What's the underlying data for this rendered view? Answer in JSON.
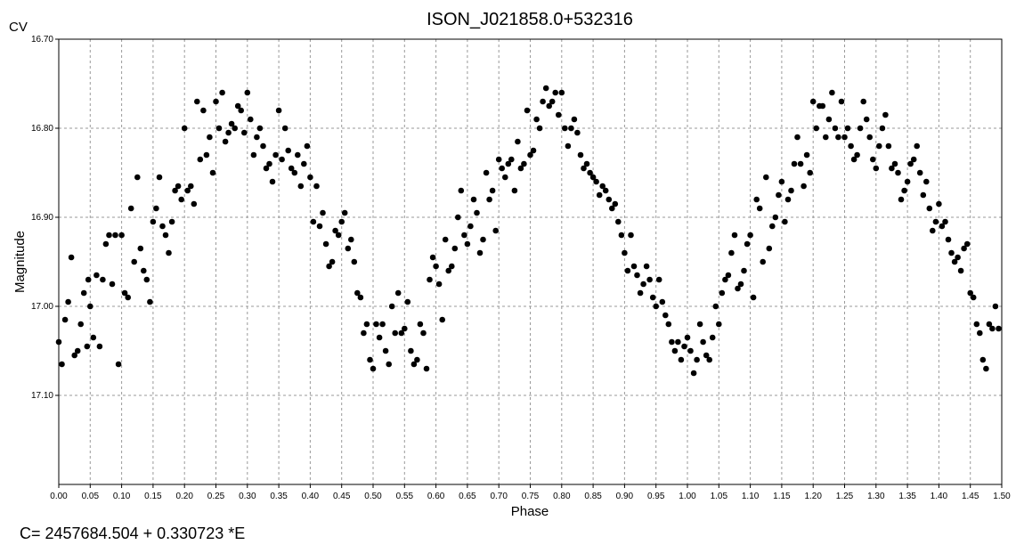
{
  "chart_data": {
    "type": "scatter",
    "title": "ISON_J021858.0+532316",
    "corner_label": "CV",
    "xlabel": "Phase",
    "ylabel": "Magnitude",
    "xlim": [
      0.0,
      1.5
    ],
    "ylim": [
      16.7,
      17.2
    ],
    "y_inverted": true,
    "grid": true,
    "x_ticks": [
      "0.00",
      "0.05",
      "0.10",
      "0.15",
      "0.20",
      "0.25",
      "0.30",
      "0.35",
      "0.40",
      "0.45",
      "0.50",
      "0.55",
      "0.60",
      "0.65",
      "0.70",
      "0.75",
      "0.80",
      "0.85",
      "0.90",
      "0.95",
      "1.00",
      "1.05",
      "1.10",
      "1.15",
      "1.20",
      "1.25",
      "1.30",
      "1.35",
      "1.40",
      "1.45",
      "1.50"
    ],
    "y_ticks": [
      "16.70",
      "16.80",
      "16.90",
      "17.00",
      "17.10"
    ],
    "marker_color": "#000000",
    "points": [
      [
        0.0,
        17.04
      ],
      [
        0.005,
        17.065
      ],
      [
        0.01,
        17.015
      ],
      [
        0.015,
        16.995
      ],
      [
        0.02,
        16.945
      ],
      [
        0.025,
        17.055
      ],
      [
        0.03,
        17.05
      ],
      [
        0.035,
        17.02
      ],
      [
        0.04,
        16.985
      ],
      [
        0.045,
        17.045
      ],
      [
        0.047,
        16.97
      ],
      [
        0.05,
        17.0
      ],
      [
        0.055,
        17.035
      ],
      [
        0.06,
        16.965
      ],
      [
        0.065,
        17.045
      ],
      [
        0.07,
        16.97
      ],
      [
        0.075,
        16.93
      ],
      [
        0.08,
        16.92
      ],
      [
        0.085,
        16.975
      ],
      [
        0.09,
        16.92
      ],
      [
        0.095,
        17.065
      ],
      [
        0.1,
        16.92
      ],
      [
        0.105,
        16.985
      ],
      [
        0.11,
        16.99
      ],
      [
        0.115,
        16.89
      ],
      [
        0.12,
        16.95
      ],
      [
        0.125,
        16.855
      ],
      [
        0.13,
        16.935
      ],
      [
        0.135,
        16.96
      ],
      [
        0.14,
        16.97
      ],
      [
        0.145,
        16.995
      ],
      [
        0.15,
        16.905
      ],
      [
        0.155,
        16.89
      ],
      [
        0.16,
        16.855
      ],
      [
        0.165,
        16.91
      ],
      [
        0.17,
        16.92
      ],
      [
        0.175,
        16.94
      ],
      [
        0.18,
        16.905
      ],
      [
        0.185,
        16.87
      ],
      [
        0.19,
        16.865
      ],
      [
        0.195,
        16.88
      ],
      [
        0.2,
        16.8
      ],
      [
        0.205,
        16.87
      ],
      [
        0.21,
        16.865
      ],
      [
        0.215,
        16.885
      ],
      [
        0.22,
        16.77
      ],
      [
        0.225,
        16.835
      ],
      [
        0.23,
        16.78
      ],
      [
        0.235,
        16.83
      ],
      [
        0.24,
        16.81
      ],
      [
        0.245,
        16.85
      ],
      [
        0.25,
        16.77
      ],
      [
        0.255,
        16.8
      ],
      [
        0.26,
        16.76
      ],
      [
        0.265,
        16.815
      ],
      [
        0.27,
        16.805
      ],
      [
        0.275,
        16.795
      ],
      [
        0.28,
        16.8
      ],
      [
        0.285,
        16.775
      ],
      [
        0.29,
        16.78
      ],
      [
        0.295,
        16.805
      ],
      [
        0.3,
        16.76
      ],
      [
        0.305,
        16.79
      ],
      [
        0.31,
        16.83
      ],
      [
        0.315,
        16.81
      ],
      [
        0.32,
        16.8
      ],
      [
        0.325,
        16.82
      ],
      [
        0.33,
        16.845
      ],
      [
        0.335,
        16.84
      ],
      [
        0.34,
        16.86
      ],
      [
        0.345,
        16.83
      ],
      [
        0.35,
        16.78
      ],
      [
        0.355,
        16.835
      ],
      [
        0.36,
        16.8
      ],
      [
        0.365,
        16.825
      ],
      [
        0.37,
        16.845
      ],
      [
        0.375,
        16.85
      ],
      [
        0.38,
        16.83
      ],
      [
        0.385,
        16.865
      ],
      [
        0.39,
        16.84
      ],
      [
        0.395,
        16.82
      ],
      [
        0.4,
        16.855
      ],
      [
        0.405,
        16.905
      ],
      [
        0.41,
        16.865
      ],
      [
        0.415,
        16.91
      ],
      [
        0.42,
        16.895
      ],
      [
        0.425,
        16.93
      ],
      [
        0.43,
        16.955
      ],
      [
        0.435,
        16.95
      ],
      [
        0.44,
        16.915
      ],
      [
        0.445,
        16.92
      ],
      [
        0.45,
        16.905
      ],
      [
        0.455,
        16.895
      ],
      [
        0.46,
        16.935
      ],
      [
        0.465,
        16.925
      ],
      [
        0.47,
        16.95
      ],
      [
        0.475,
        16.985
      ],
      [
        0.48,
        16.99
      ],
      [
        0.485,
        17.03
      ],
      [
        0.49,
        17.02
      ],
      [
        0.495,
        17.06
      ],
      [
        0.5,
        17.07
      ],
      [
        0.505,
        17.02
      ],
      [
        0.51,
        17.035
      ],
      [
        0.515,
        17.02
      ],
      [
        0.52,
        17.05
      ],
      [
        0.525,
        17.065
      ],
      [
        0.53,
        17.0
      ],
      [
        0.535,
        17.03
      ],
      [
        0.54,
        16.985
      ],
      [
        0.545,
        17.03
      ],
      [
        0.55,
        17.025
      ],
      [
        0.555,
        16.995
      ],
      [
        0.56,
        17.05
      ],
      [
        0.565,
        17.065
      ],
      [
        0.57,
        17.06
      ],
      [
        0.575,
        17.02
      ],
      [
        0.58,
        17.03
      ],
      [
        0.585,
        17.07
      ],
      [
        0.59,
        16.97
      ],
      [
        0.595,
        16.945
      ],
      [
        0.6,
        16.955
      ],
      [
        0.605,
        16.975
      ],
      [
        0.61,
        17.015
      ],
      [
        0.615,
        16.925
      ],
      [
        0.62,
        16.96
      ],
      [
        0.625,
        16.955
      ],
      [
        0.63,
        16.935
      ],
      [
        0.635,
        16.9
      ],
      [
        0.64,
        16.87
      ],
      [
        0.645,
        16.92
      ],
      [
        0.65,
        16.93
      ],
      [
        0.655,
        16.91
      ],
      [
        0.66,
        16.88
      ],
      [
        0.665,
        16.895
      ],
      [
        0.67,
        16.94
      ],
      [
        0.675,
        16.925
      ],
      [
        0.68,
        16.85
      ],
      [
        0.685,
        16.88
      ],
      [
        0.69,
        16.87
      ],
      [
        0.695,
        16.915
      ],
      [
        0.7,
        16.835
      ],
      [
        0.705,
        16.845
      ],
      [
        0.71,
        16.855
      ],
      [
        0.715,
        16.84
      ],
      [
        0.72,
        16.835
      ],
      [
        0.725,
        16.87
      ],
      [
        0.73,
        16.815
      ],
      [
        0.735,
        16.845
      ],
      [
        0.74,
        16.84
      ],
      [
        0.745,
        16.78
      ],
      [
        0.75,
        16.83
      ],
      [
        0.755,
        16.825
      ],
      [
        0.76,
        16.79
      ],
      [
        0.765,
        16.8
      ],
      [
        0.77,
        16.77
      ],
      [
        0.775,
        16.755
      ],
      [
        0.78,
        16.775
      ],
      [
        0.785,
        16.77
      ],
      [
        0.79,
        16.76
      ],
      [
        0.795,
        16.785
      ],
      [
        0.8,
        16.76
      ],
      [
        0.805,
        16.8
      ],
      [
        0.81,
        16.82
      ],
      [
        0.815,
        16.8
      ],
      [
        0.82,
        16.79
      ],
      [
        0.825,
        16.805
      ],
      [
        0.83,
        16.83
      ],
      [
        0.835,
        16.845
      ],
      [
        0.84,
        16.84
      ],
      [
        0.845,
        16.85
      ],
      [
        0.85,
        16.855
      ],
      [
        0.855,
        16.86
      ],
      [
        0.86,
        16.875
      ],
      [
        0.865,
        16.865
      ],
      [
        0.87,
        16.87
      ],
      [
        0.875,
        16.88
      ],
      [
        0.88,
        16.89
      ],
      [
        0.885,
        16.885
      ],
      [
        0.89,
        16.905
      ],
      [
        0.895,
        16.92
      ],
      [
        0.9,
        16.94
      ],
      [
        0.905,
        16.96
      ],
      [
        0.91,
        16.92
      ],
      [
        0.915,
        16.955
      ],
      [
        0.92,
        16.965
      ],
      [
        0.925,
        16.985
      ],
      [
        0.93,
        16.975
      ],
      [
        0.935,
        16.955
      ],
      [
        0.94,
        16.97
      ],
      [
        0.945,
        16.99
      ],
      [
        0.95,
        17.0
      ],
      [
        0.955,
        16.97
      ],
      [
        0.96,
        16.995
      ],
      [
        0.965,
        17.01
      ],
      [
        0.97,
        17.02
      ],
      [
        0.975,
        17.04
      ],
      [
        0.98,
        17.05
      ],
      [
        0.985,
        17.04
      ],
      [
        0.99,
        17.06
      ],
      [
        0.995,
        17.045
      ],
      [
        1.0,
        17.035
      ],
      [
        1.005,
        17.05
      ],
      [
        1.01,
        17.075
      ],
      [
        1.015,
        17.06
      ],
      [
        1.02,
        17.02
      ],
      [
        1.025,
        17.04
      ],
      [
        1.03,
        17.055
      ],
      [
        1.035,
        17.06
      ],
      [
        1.04,
        17.035
      ],
      [
        1.045,
        17.0
      ],
      [
        1.05,
        17.02
      ],
      [
        1.055,
        16.985
      ],
      [
        1.06,
        16.97
      ],
      [
        1.065,
        16.965
      ],
      [
        1.07,
        16.94
      ],
      [
        1.075,
        16.92
      ],
      [
        1.08,
        16.98
      ],
      [
        1.085,
        16.975
      ],
      [
        1.09,
        16.96
      ],
      [
        1.095,
        16.93
      ],
      [
        1.1,
        16.92
      ],
      [
        1.105,
        16.99
      ],
      [
        1.11,
        16.88
      ],
      [
        1.115,
        16.89
      ],
      [
        1.12,
        16.95
      ],
      [
        1.125,
        16.855
      ],
      [
        1.13,
        16.935
      ],
      [
        1.135,
        16.91
      ],
      [
        1.14,
        16.9
      ],
      [
        1.145,
        16.875
      ],
      [
        1.15,
        16.86
      ],
      [
        1.155,
        16.905
      ],
      [
        1.16,
        16.88
      ],
      [
        1.165,
        16.87
      ],
      [
        1.17,
        16.84
      ],
      [
        1.175,
        16.81
      ],
      [
        1.18,
        16.84
      ],
      [
        1.185,
        16.865
      ],
      [
        1.19,
        16.83
      ],
      [
        1.195,
        16.85
      ],
      [
        1.2,
        16.77
      ],
      [
        1.205,
        16.8
      ],
      [
        1.21,
        16.775
      ],
      [
        1.215,
        16.775
      ],
      [
        1.22,
        16.81
      ],
      [
        1.225,
        16.79
      ],
      [
        1.23,
        16.76
      ],
      [
        1.235,
        16.8
      ],
      [
        1.24,
        16.81
      ],
      [
        1.245,
        16.77
      ],
      [
        1.25,
        16.81
      ],
      [
        1.255,
        16.8
      ],
      [
        1.26,
        16.82
      ],
      [
        1.265,
        16.835
      ],
      [
        1.27,
        16.83
      ],
      [
        1.275,
        16.8
      ],
      [
        1.28,
        16.77
      ],
      [
        1.285,
        16.79
      ],
      [
        1.29,
        16.81
      ],
      [
        1.295,
        16.835
      ],
      [
        1.3,
        16.845
      ],
      [
        1.305,
        16.82
      ],
      [
        1.31,
        16.8
      ],
      [
        1.315,
        16.785
      ],
      [
        1.32,
        16.82
      ],
      [
        1.325,
        16.845
      ],
      [
        1.33,
        16.84
      ],
      [
        1.335,
        16.85
      ],
      [
        1.34,
        16.88
      ],
      [
        1.345,
        16.87
      ],
      [
        1.35,
        16.86
      ],
      [
        1.355,
        16.84
      ],
      [
        1.36,
        16.835
      ],
      [
        1.365,
        16.82
      ],
      [
        1.37,
        16.85
      ],
      [
        1.375,
        16.875
      ],
      [
        1.38,
        16.86
      ],
      [
        1.385,
        16.89
      ],
      [
        1.39,
        16.915
      ],
      [
        1.395,
        16.905
      ],
      [
        1.4,
        16.885
      ],
      [
        1.405,
        16.91
      ],
      [
        1.41,
        16.905
      ],
      [
        1.415,
        16.925
      ],
      [
        1.42,
        16.94
      ],
      [
        1.425,
        16.95
      ],
      [
        1.43,
        16.945
      ],
      [
        1.435,
        16.96
      ],
      [
        1.44,
        16.935
      ],
      [
        1.445,
        16.93
      ],
      [
        1.45,
        16.985
      ],
      [
        1.455,
        16.99
      ],
      [
        1.46,
        17.02
      ],
      [
        1.465,
        17.03
      ],
      [
        1.47,
        17.06
      ],
      [
        1.475,
        17.07
      ],
      [
        1.48,
        17.02
      ],
      [
        1.485,
        17.025
      ],
      [
        1.49,
        17.0
      ],
      [
        1.495,
        17.025
      ]
    ]
  },
  "footer": {
    "formula": "C= 2457684.504 + 0.330723 *E"
  }
}
